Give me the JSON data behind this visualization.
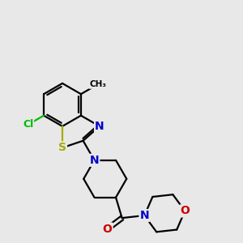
{
  "background_color": "#e8e8e8",
  "figsize": [
    3.0,
    3.0
  ],
  "dpi": 100,
  "atom_colors": {
    "C": "#000000",
    "N": "#0000cc",
    "O": "#cc0000",
    "S": "#aaaa00",
    "Cl": "#00bb00"
  },
  "bond_color": "#000000",
  "bond_width": 1.6,
  "font_size_atom": 9
}
